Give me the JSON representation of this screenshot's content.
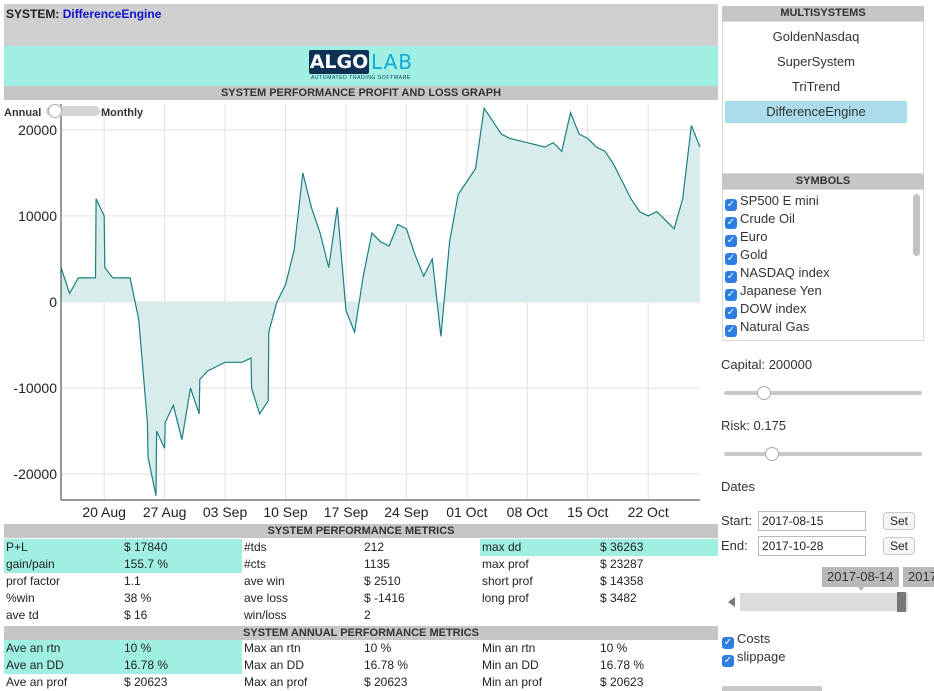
{
  "system": {
    "label": "SYSTEM:",
    "name": "DifferenceEngine"
  },
  "logo": {
    "algo": "ALGO",
    "lab": "LAB",
    "tagline": "AUTOMATED TRADING SOFTWARE"
  },
  "graph": {
    "header": "SYSTEM PERFORMANCE PROFIT AND LOSS GRAPH",
    "toggle_left": "Annual",
    "toggle_right": "Monthly"
  },
  "chart_data": {
    "type": "area",
    "title": "",
    "xlabel": "",
    "ylabel": "",
    "ylim": [
      -23000,
      23000
    ],
    "y_ticks": [
      20000,
      10000,
      0,
      -10000,
      -20000
    ],
    "x_ticks": [
      "20 Aug",
      "27 Aug",
      "03 Sep",
      "10 Sep",
      "17 Sep",
      "24 Sep",
      "01 Oct",
      "08 Oct",
      "15 Oct",
      "22 Oct"
    ],
    "x_tick_dates": [
      "2017-08-20",
      "2017-08-27",
      "2017-09-03",
      "2017-09-10",
      "2017-09-17",
      "2017-09-24",
      "2017-10-01",
      "2017-10-08",
      "2017-10-15",
      "2017-10-22"
    ],
    "xlim": [
      "2017-08-15",
      "2017-10-28"
    ],
    "grid": true,
    "color": "#1b7f80",
    "fill_color": "#d9ecec",
    "series": [
      {
        "x": [
          "2017-08-15",
          "2017-08-16",
          "2017-08-17",
          "2017-08-18",
          "2017-08-19",
          "2017-08-19",
          "2017-08-20",
          "2017-08-20",
          "2017-08-21",
          "2017-08-23",
          "2017-08-24",
          "2017-08-25",
          "2017-08-25",
          "2017-08-26",
          "2017-08-26",
          "2017-08-27",
          "2017-08-27",
          "2017-08-28",
          "2017-08-29",
          "2017-08-30",
          "2017-08-31",
          "2017-08-31",
          "2017-09-01",
          "2017-09-02",
          "2017-09-03",
          "2017-09-05",
          "2017-09-06",
          "2017-09-06",
          "2017-09-07",
          "2017-09-08",
          "2017-09-08",
          "2017-09-09",
          "2017-09-10",
          "2017-09-11",
          "2017-09-12",
          "2017-09-13",
          "2017-09-14",
          "2017-09-15",
          "2017-09-16",
          "2017-09-17",
          "2017-09-18",
          "2017-09-19",
          "2017-09-20",
          "2017-09-21",
          "2017-09-22",
          "2017-09-23",
          "2017-09-24",
          "2017-09-25",
          "2017-09-26",
          "2017-09-27",
          "2017-09-28",
          "2017-09-29",
          "2017-09-30",
          "2017-10-01",
          "2017-10-02",
          "2017-10-03",
          "2017-10-04",
          "2017-10-05",
          "2017-10-06",
          "2017-10-08",
          "2017-10-10",
          "2017-10-11",
          "2017-10-12",
          "2017-10-13",
          "2017-10-14",
          "2017-10-15",
          "2017-10-16",
          "2017-10-17",
          "2017-10-18",
          "2017-10-19",
          "2017-10-20",
          "2017-10-21",
          "2017-10-22",
          "2017-10-23",
          "2017-10-24",
          "2017-10-25",
          "2017-10-26",
          "2017-10-27",
          "2017-10-28"
        ],
        "y": [
          4000,
          1000,
          2800,
          2800,
          2800,
          12000,
          10000,
          4000,
          2800,
          2800,
          -2000,
          -14000,
          -18000,
          -22500,
          -15000,
          -17000,
          -14000,
          -12000,
          -16000,
          -10000,
          -13000,
          -9000,
          -8000,
          -7500,
          -7000,
          -7000,
          -6500,
          -10000,
          -13000,
          -11500,
          -3500,
          0,
          2000,
          6000,
          15000,
          11000,
          8000,
          4000,
          11000,
          -1000,
          -3500,
          3000,
          8000,
          7000,
          6500,
          9000,
          8500,
          5500,
          3000,
          5000,
          -4000,
          7000,
          12500,
          14000,
          15500,
          22500,
          21000,
          19500,
          19000,
          18500,
          18000,
          18500,
          17500,
          22000,
          19500,
          19000,
          18000,
          17500,
          16000,
          14000,
          12000,
          10500,
          10000,
          10500,
          9500,
          8500,
          12000,
          20500,
          18000
        ]
      }
    ]
  },
  "metrics": {
    "header": "SYSTEM PERFORMANCE METRICS",
    "rows": [
      [
        "P+L",
        "$ 17840",
        "#tds",
        "212",
        "max dd",
        "$ 36263"
      ],
      [
        "gain/pain",
        "155.7 %",
        "#cts",
        "1135",
        "max prof",
        "$ 23287"
      ],
      [
        "prof factor",
        "1.1",
        "ave win",
        "$ 2510",
        "short prof",
        "$ 14358"
      ],
      [
        "%win",
        "38 %",
        "ave loss",
        "$ -1416",
        "long prof",
        "$ 3482"
      ],
      [
        "ave td",
        "$ 16",
        "win/loss",
        "2",
        "",
        ""
      ]
    ]
  },
  "annual": {
    "header": "SYSTEM ANNUAL PERFORMANCE METRICS",
    "rows": [
      [
        "Ave an rtn",
        "10 %",
        "Max an rtn",
        "10 %",
        "Min an rtn",
        "10 %"
      ],
      [
        "Ave an DD",
        "16.78 %",
        "Max an DD",
        "16.78 %",
        "Min an DD",
        "16.78 %"
      ],
      [
        "Ave an prof",
        "$ 20623",
        "Max an prof",
        "$ 20623",
        "Min an prof",
        "$ 20623"
      ]
    ]
  },
  "multisystems": {
    "header": "MULTISYSTEMS",
    "items": [
      "GoldenNasdaq",
      "SuperSystem",
      "TriTrend",
      "DifferenceEngine"
    ],
    "selected": "DifferenceEngine"
  },
  "symbols": {
    "header": "SYMBOLS",
    "items": [
      "SP500 E mini",
      "Crude Oil",
      "Euro",
      "Gold",
      "NASDAQ index",
      "Japanese Yen",
      "DOW index",
      "Natural Gas"
    ]
  },
  "capital": {
    "label": "Capital: 200000",
    "level": 0.2
  },
  "risk": {
    "label": "Risk: 0.175",
    "level": 0.24
  },
  "dates": {
    "label": "Dates",
    "start_label": "Start:",
    "start_value": "2017-08-15",
    "end_label": "End:",
    "end_value": "2017-10-28",
    "set_label": "Set",
    "range_from": "2017-08-14",
    "range_to": "2017"
  },
  "options": {
    "costs": "Costs",
    "slippage": "slippage"
  }
}
